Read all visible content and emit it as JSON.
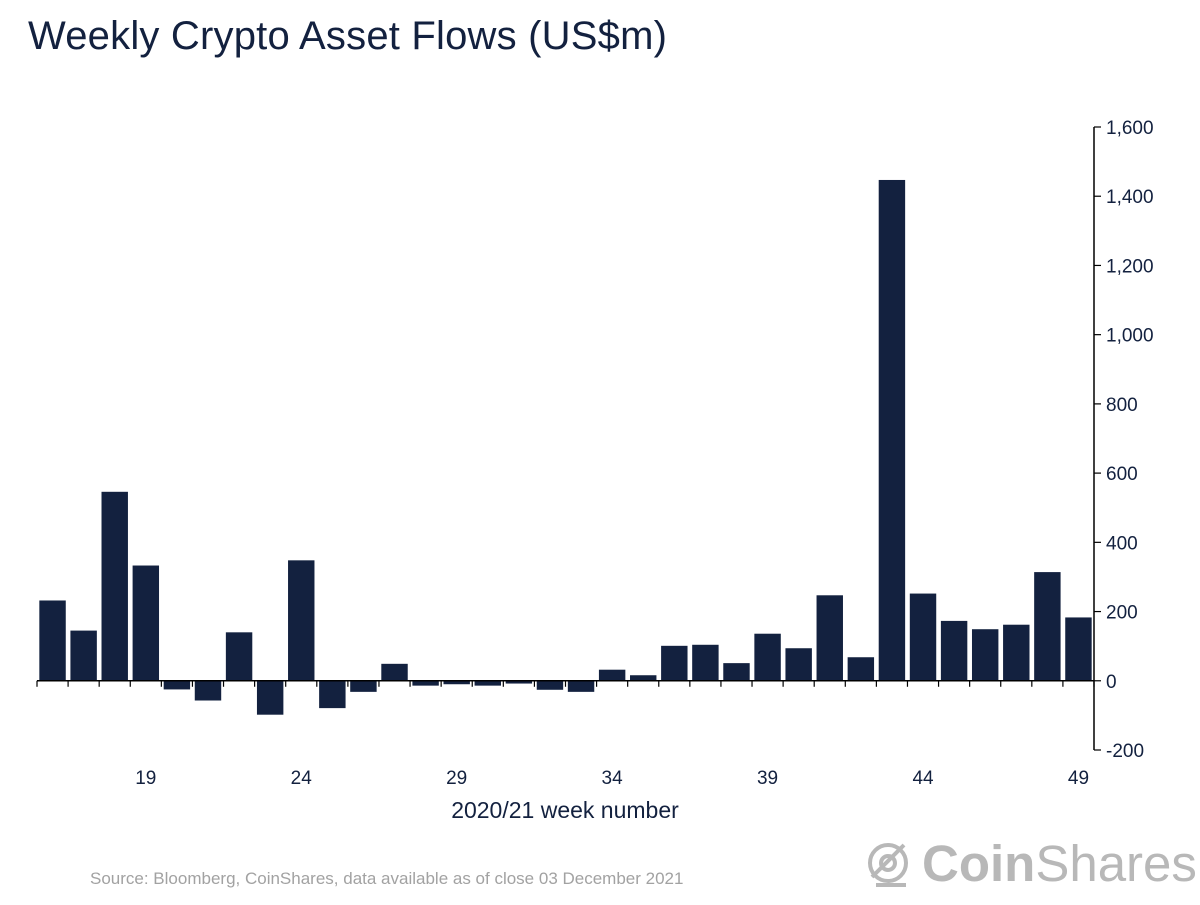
{
  "title": "Weekly Crypto Asset Flows (US$m)",
  "source": "Source: Bloomberg, CoinShares, data available as of close 03 December 2021",
  "brand": {
    "bold": "Coin",
    "light": "Shares",
    "icon": "coinshares-logo-icon"
  },
  "colors": {
    "bar": "#13213f",
    "axis": "#000000",
    "text": "#13213f",
    "muted": "#a2a2a2"
  },
  "chart_data": {
    "type": "bar",
    "title": "Weekly Crypto Asset Flows (US$m)",
    "xlabel": "2020/21 week number",
    "ylabel": "",
    "ylim": [
      -200,
      1600
    ],
    "yticks": [
      -200,
      0,
      200,
      400,
      600,
      800,
      1000,
      1200,
      1400,
      1600
    ],
    "ytick_labels": [
      "-200",
      "0",
      "200",
      "400",
      "600",
      "800",
      "1,000",
      "1,200",
      "1,400",
      "1,600"
    ],
    "y_axis_side": "right",
    "grid": false,
    "categories": [
      16,
      17,
      18,
      19,
      20,
      21,
      22,
      23,
      24,
      25,
      26,
      27,
      28,
      29,
      30,
      31,
      32,
      33,
      34,
      35,
      36,
      37,
      38,
      39,
      40,
      41,
      42,
      43,
      44,
      45,
      46,
      47,
      48,
      49
    ],
    "x_tick_labels": [
      "19",
      "24",
      "29",
      "34",
      "39",
      "44",
      "49"
    ],
    "values": [
      232,
      145,
      546,
      333,
      -25,
      -57,
      140,
      -98,
      348,
      -79,
      -32,
      49,
      -14,
      -10,
      -14,
      -8,
      -26,
      -32,
      32,
      16,
      101,
      104,
      51,
      136,
      94,
      247,
      68,
      1447,
      252,
      173,
      149,
      162,
      314,
      183
    ]
  }
}
